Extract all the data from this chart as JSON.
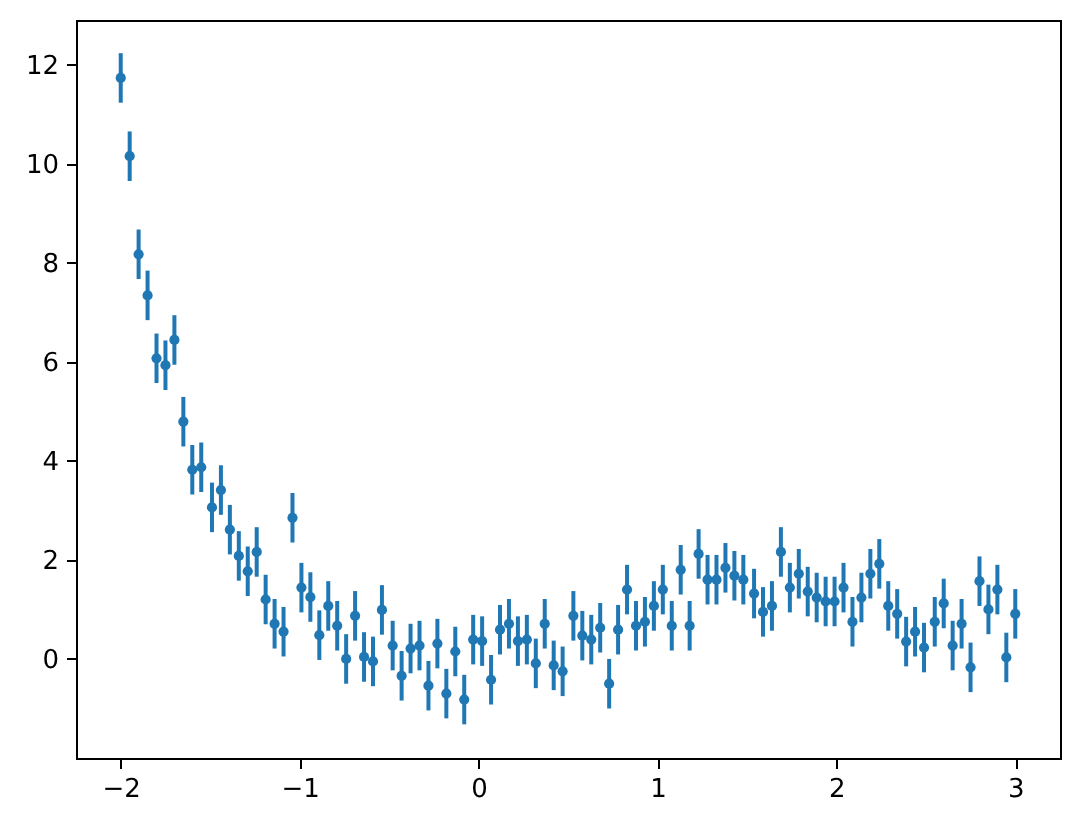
{
  "chart_data": {
    "type": "scatter",
    "color": "#1f77b4",
    "marker": "circle",
    "x": [
      -2.0,
      -1.95,
      -1.9,
      -1.85,
      -1.8,
      -1.75,
      -1.7,
      -1.65,
      -1.6,
      -1.55,
      -1.49,
      -1.44,
      -1.39,
      -1.34,
      -1.29,
      -1.24,
      -1.19,
      -1.14,
      -1.09,
      -1.04,
      -0.99,
      -0.94,
      -0.89,
      -0.84,
      -0.79,
      -0.74,
      -0.69,
      -0.64,
      -0.59,
      -0.54,
      -0.48,
      -0.43,
      -0.38,
      -0.33,
      -0.28,
      -0.23,
      -0.18,
      -0.13,
      -0.08,
      -0.03,
      0.02,
      0.07,
      0.12,
      0.17,
      0.22,
      0.27,
      0.32,
      0.37,
      0.42,
      0.47,
      0.53,
      0.58,
      0.63,
      0.68,
      0.73,
      0.78,
      0.83,
      0.88,
      0.93,
      0.98,
      1.03,
      1.08,
      1.13,
      1.18,
      1.23,
      1.28,
      1.33,
      1.38,
      1.43,
      1.48,
      1.54,
      1.59,
      1.64,
      1.69,
      1.74,
      1.79,
      1.84,
      1.89,
      1.94,
      1.99,
      2.04,
      2.09,
      2.14,
      2.19,
      2.24,
      2.29,
      2.34,
      2.39,
      2.44,
      2.49,
      2.55,
      2.6,
      2.65,
      2.7,
      2.75,
      2.8,
      2.85,
      2.9,
      2.95,
      3.0
    ],
    "values": [
      11.73,
      10.15,
      8.17,
      7.34,
      6.07,
      5.93,
      6.44,
      4.79,
      3.82,
      3.87,
      3.06,
      3.41,
      2.61,
      2.08,
      1.77,
      2.16,
      1.2,
      0.71,
      0.55,
      2.85,
      1.44,
      1.25,
      0.48,
      1.07,
      0.67,
      0.0,
      0.87,
      0.04,
      -0.05,
      0.99,
      0.27,
      -0.34,
      0.21,
      0.27,
      -0.54,
      0.31,
      -0.7,
      0.15,
      -0.82,
      0.39,
      0.36,
      -0.42,
      0.59,
      0.71,
      0.36,
      0.39,
      -0.09,
      0.71,
      -0.13,
      -0.25,
      0.87,
      0.47,
      0.39,
      0.63,
      -0.5,
      0.59,
      1.4,
      0.67,
      0.75,
      1.07,
      1.4,
      0.67,
      1.8,
      0.67,
      2.12,
      1.6,
      1.6,
      1.84,
      1.68,
      1.6,
      1.32,
      0.95,
      1.07,
      2.16,
      1.44,
      1.72,
      1.36,
      1.24,
      1.16,
      1.16,
      1.44,
      0.75,
      1.24,
      1.72,
      1.92,
      1.07,
      0.91,
      0.35,
      0.55,
      0.23,
      0.75,
      1.12,
      0.27,
      0.71,
      -0.17,
      1.57,
      1.0,
      1.4,
      0.03,
      0.91
    ],
    "errors": [
      0.5,
      0.5,
      0.5,
      0.5,
      0.5,
      0.5,
      0.5,
      0.5,
      0.5,
      0.5,
      0.5,
      0.5,
      0.5,
      0.5,
      0.5,
      0.5,
      0.5,
      0.5,
      0.5,
      0.5,
      0.5,
      0.5,
      0.5,
      0.5,
      0.5,
      0.5,
      0.5,
      0.5,
      0.5,
      0.5,
      0.5,
      0.5,
      0.5,
      0.5,
      0.5,
      0.5,
      0.5,
      0.5,
      0.5,
      0.5,
      0.5,
      0.5,
      0.5,
      0.5,
      0.5,
      0.5,
      0.5,
      0.5,
      0.5,
      0.5,
      0.5,
      0.5,
      0.5,
      0.5,
      0.5,
      0.5,
      0.5,
      0.5,
      0.5,
      0.5,
      0.5,
      0.5,
      0.5,
      0.5,
      0.5,
      0.5,
      0.5,
      0.5,
      0.5,
      0.5,
      0.5,
      0.5,
      0.5,
      0.5,
      0.5,
      0.5,
      0.5,
      0.5,
      0.5,
      0.5,
      0.5,
      0.5,
      0.5,
      0.5,
      0.5,
      0.5,
      0.5,
      0.5,
      0.5,
      0.5,
      0.5,
      0.5,
      0.5,
      0.5,
      0.5,
      0.5,
      0.5,
      0.5,
      0.5,
      0.5
    ],
    "xlim": [
      -2.25,
      3.25
    ],
    "ylim": [
      -2.0,
      12.9
    ],
    "xticks": [
      -2,
      -1,
      0,
      1,
      2,
      3
    ],
    "yticks": [
      0,
      2,
      4,
      6,
      8,
      10,
      12
    ]
  }
}
